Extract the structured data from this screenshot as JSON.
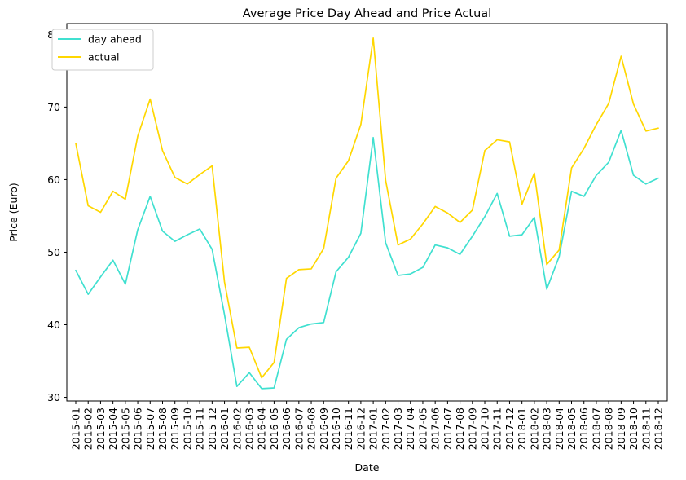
{
  "chart_data": {
    "type": "line",
    "title": "Average Price Day Ahead and Price Actual",
    "xlabel": "Date",
    "ylabel": "Price (Euro)",
    "ylim": [
      29.5,
      81.5
    ],
    "yticks": [
      30,
      40,
      50,
      60,
      70,
      80
    ],
    "x": [
      "2015-01",
      "2015-02",
      "2015-03",
      "2015-04",
      "2015-05",
      "2015-06",
      "2015-07",
      "2015-08",
      "2015-09",
      "2015-10",
      "2015-11",
      "2015-12",
      "2016-01",
      "2016-02",
      "2016-03",
      "2016-04",
      "2016-05",
      "2016-06",
      "2016-07",
      "2016-08",
      "2016-09",
      "2016-10",
      "2016-11",
      "2016-12",
      "2017-01",
      "2017-02",
      "2017-03",
      "2017-04",
      "2017-05",
      "2017-06",
      "2017-07",
      "2017-08",
      "2017-09",
      "2017-10",
      "2017-11",
      "2017-12",
      "2018-01",
      "2018-02",
      "2018-03",
      "2018-04",
      "2018-05",
      "2018-06",
      "2018-07",
      "2018-08",
      "2018-09",
      "2018-10",
      "2018-11",
      "2018-12"
    ],
    "series": [
      {
        "name": "day ahead",
        "color": "#40e0d0",
        "values": [
          47.5,
          44.2,
          46.6,
          48.9,
          45.6,
          53.1,
          57.7,
          52.9,
          51.5,
          52.4,
          53.2,
          50.4,
          41.4,
          31.5,
          33.4,
          31.2,
          31.3,
          38.0,
          39.6,
          40.1,
          40.3,
          47.3,
          49.3,
          52.6,
          65.8,
          51.3,
          46.8,
          47.0,
          47.9,
          51.0,
          50.6,
          49.7,
          52.2,
          54.9,
          58.1,
          52.2,
          52.4,
          54.8,
          44.9,
          49.4,
          58.4,
          57.7,
          60.6,
          62.4,
          66.8,
          60.6,
          59.4,
          60.2
        ]
      },
      {
        "name": "actual",
        "color": "#ffd700",
        "values": [
          65.0,
          56.4,
          55.5,
          58.4,
          57.3,
          66.0,
          71.1,
          64.0,
          60.3,
          59.4,
          60.7,
          61.9,
          45.9,
          36.8,
          36.9,
          32.7,
          34.8,
          46.4,
          47.6,
          47.7,
          50.5,
          60.2,
          62.6,
          67.6,
          79.5,
          59.9,
          51.0,
          51.8,
          53.9,
          56.3,
          55.4,
          54.1,
          55.8,
          64.0,
          65.5,
          65.2,
          56.6,
          60.9,
          48.3,
          50.3,
          61.6,
          64.3,
          67.6,
          70.5,
          77.0,
          70.4,
          66.7,
          67.1
        ]
      }
    ],
    "legend": {
      "location": "upper left",
      "entries": [
        "day ahead",
        "actual"
      ]
    },
    "grid": false
  }
}
